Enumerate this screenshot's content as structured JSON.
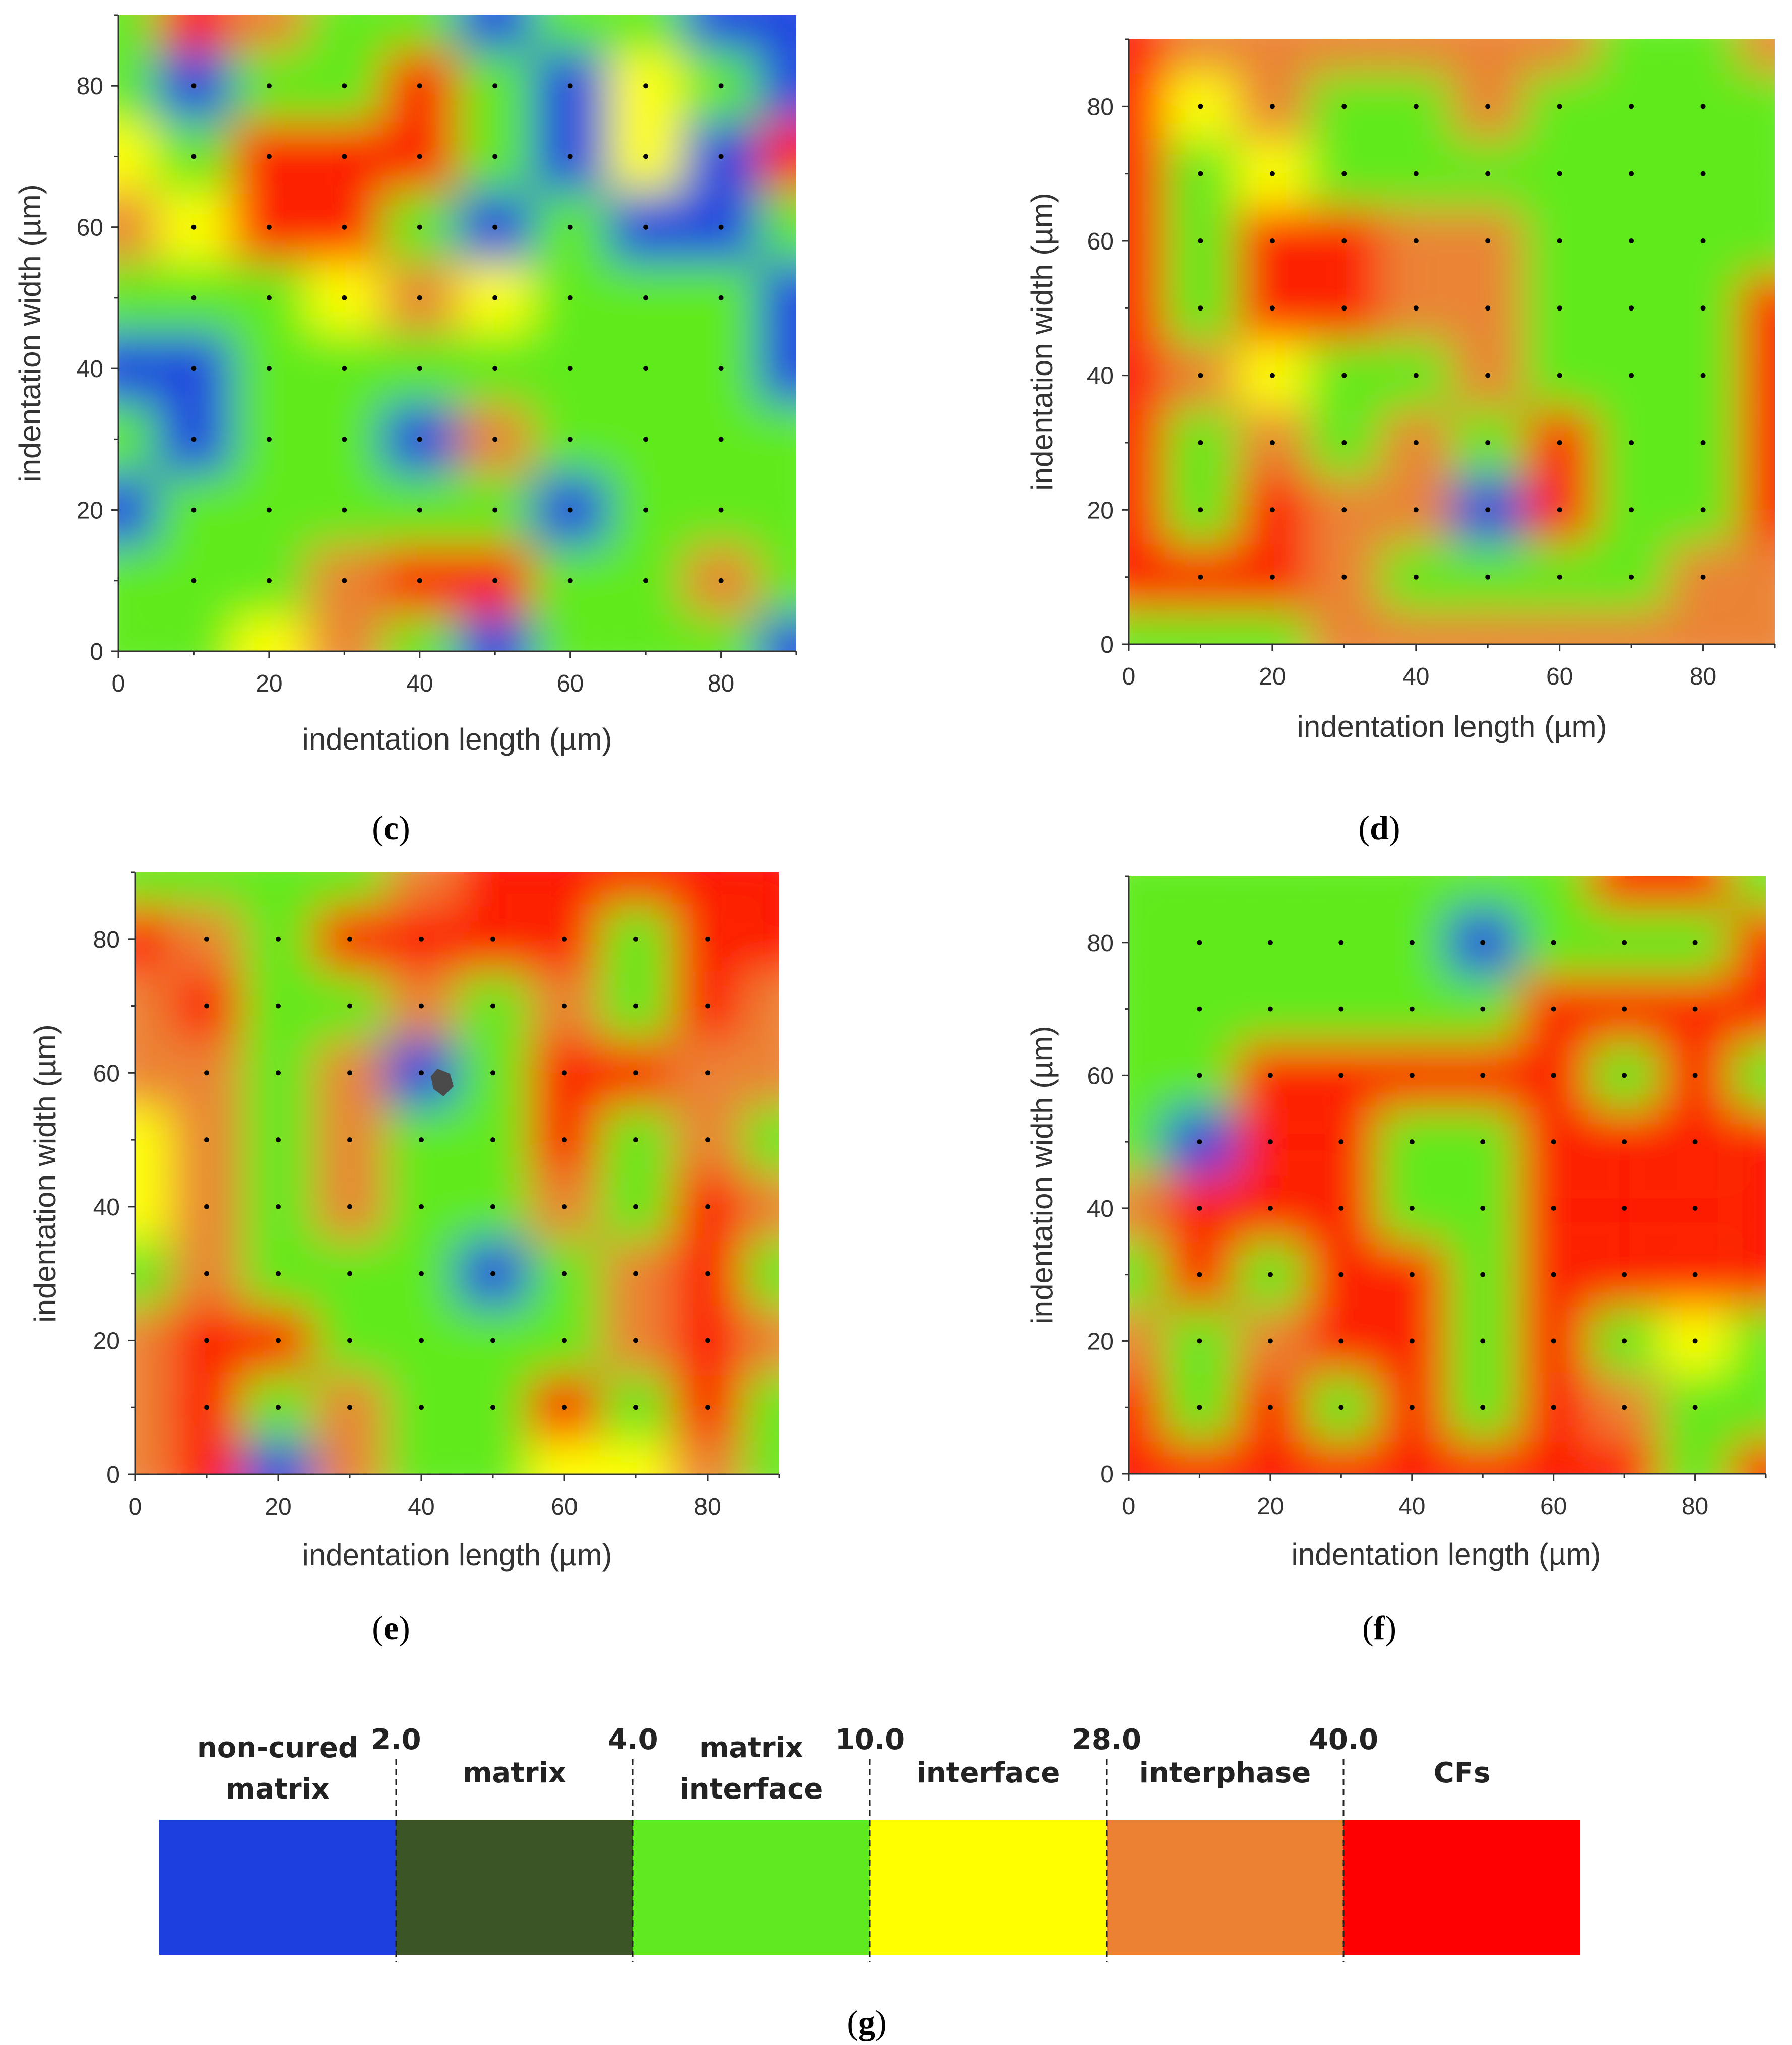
{
  "colors": {
    "non_cured_matrix": "#1e3fe0",
    "matrix": "#3c5526",
    "matrix_interface": "#5fea1f",
    "interface": "#ffff00",
    "interphase": "#ec8134",
    "cfs": "#ff0000"
  },
  "chart_data": [
    {
      "type": "heatmap",
      "panel_label": "(c)",
      "panel_letter": "c",
      "xlabel": "indentation length (µm)",
      "ylabel": "indentation width (µm)",
      "xlim": [
        0,
        90
      ],
      "ylim": [
        0,
        90
      ],
      "x_ticks": [
        0,
        20,
        40,
        60,
        80
      ],
      "y_ticks": [
        0,
        20,
        40,
        60,
        80
      ],
      "indent_grid": [
        10,
        20,
        30,
        40,
        50,
        60,
        70,
        80
      ],
      "x": [
        0,
        10,
        20,
        30,
        40,
        50,
        60,
        70,
        80,
        90
      ],
      "y": [
        0,
        10,
        20,
        30,
        40,
        50,
        60,
        70,
        80,
        90
      ],
      "z": [
        [
          8,
          4,
          10,
          28,
          6,
          1,
          4,
          5,
          2,
          1
        ],
        [
          6,
          5,
          7,
          28,
          40,
          42,
          8,
          5,
          30,
          6
        ],
        [
          1,
          3,
          5,
          2,
          3,
          4,
          1,
          2,
          6,
          2
        ],
        [
          2,
          1,
          4,
          3,
          1,
          28,
          5,
          2,
          6,
          2
        ],
        [
          1,
          0.5,
          4,
          6,
          2,
          5,
          6,
          8,
          4,
          1
        ],
        [
          4,
          6,
          8,
          10,
          28,
          10,
          4,
          3,
          2,
          1
        ],
        [
          35,
          12,
          40,
          42,
          3,
          1,
          2,
          1,
          1,
          4
        ],
        [
          10,
          4,
          40,
          45,
          42,
          4,
          1,
          20,
          1,
          45
        ],
        [
          4,
          1,
          2,
          6,
          40,
          3,
          1,
          25,
          2,
          1
        ],
        [
          4,
          45,
          35,
          4,
          2,
          1,
          3,
          4,
          1,
          0.5
        ]
      ]
    },
    {
      "type": "heatmap",
      "panel_label": "(d)",
      "panel_letter": "d",
      "xlabel": "indentation length (µm)",
      "ylabel": "indentation width (µm)",
      "xlim": [
        0,
        90
      ],
      "ylim": [
        0,
        90
      ],
      "x_ticks": [
        0,
        20,
        40,
        60,
        80
      ],
      "y_ticks": [
        0,
        20,
        40,
        60,
        80
      ],
      "indent_grid": [
        10,
        20,
        30,
        40,
        50,
        60,
        70,
        80
      ],
      "x": [
        0,
        10,
        20,
        30,
        40,
        50,
        60,
        70,
        80,
        90
      ],
      "y": [
        0,
        10,
        20,
        30,
        40,
        50,
        60,
        70,
        80,
        90
      ],
      "z": [
        [
          2,
          2,
          4,
          30,
          28,
          30,
          28,
          30,
          28,
          30
        ],
        [
          45,
          45,
          40,
          30,
          6,
          4,
          6,
          5,
          30,
          28
        ],
        [
          45,
          6,
          40,
          35,
          28,
          1,
          45,
          8,
          6,
          40
        ],
        [
          45,
          6,
          35,
          6,
          30,
          6,
          45,
          8,
          3,
          40
        ],
        [
          45,
          28,
          12,
          8,
          6,
          28,
          6,
          4,
          6,
          40
        ],
        [
          45,
          8,
          45,
          40,
          28,
          30,
          6,
          8,
          2,
          40
        ],
        [
          45,
          6,
          45,
          45,
          28,
          30,
          8,
          5,
          6,
          6
        ],
        [
          45,
          8,
          10,
          6,
          6,
          6,
          8,
          6,
          6,
          6
        ],
        [
          45,
          10,
          28,
          8,
          6,
          30,
          6,
          4,
          6,
          6
        ],
        [
          45,
          28,
          28,
          28,
          28,
          30,
          28,
          4,
          6,
          28
        ]
      ]
    },
    {
      "type": "heatmap",
      "panel_label": "(e)",
      "panel_letter": "e",
      "xlabel": "indentation length (µm)",
      "ylabel": "indentation width (µm)",
      "xlim": [
        0,
        90
      ],
      "ylim": [
        0,
        90
      ],
      "x_ticks": [
        0,
        20,
        40,
        60,
        80
      ],
      "y_ticks": [
        0,
        20,
        40,
        60,
        80
      ],
      "indent_grid": [
        10,
        20,
        30,
        40,
        50,
        60,
        70,
        80
      ],
      "x": [
        0,
        10,
        20,
        30,
        40,
        50,
        60,
        70,
        80,
        90
      ],
      "y": [
        0,
        10,
        20,
        30,
        40,
        50,
        60,
        70,
        80,
        90
      ],
      "z": [
        [
          28,
          40,
          1,
          28,
          6,
          8,
          20,
          10,
          30,
          6
        ],
        [
          28,
          42,
          6,
          30,
          6,
          8,
          40,
          6,
          45,
          8
        ],
        [
          28,
          45,
          40,
          6,
          6,
          6,
          6,
          30,
          45,
          28
        ],
        [
          6,
          28,
          6,
          8,
          8,
          1,
          8,
          30,
          40,
          2
        ],
        [
          10,
          28,
          6,
          28,
          6,
          6,
          30,
          6,
          40,
          28
        ],
        [
          10,
          30,
          6,
          28,
          6,
          6,
          40,
          2,
          30,
          2
        ],
        [
          28,
          35,
          6,
          30,
          1,
          6,
          40,
          42,
          30,
          28
        ],
        [
          30,
          40,
          6,
          8,
          30,
          8,
          28,
          6,
          40,
          30
        ],
        [
          40,
          35,
          8,
          45,
          40,
          45,
          45,
          6,
          40,
          45
        ],
        [
          6,
          6,
          6,
          6,
          30,
          40,
          45,
          40,
          40,
          45
        ]
      ]
    },
    {
      "type": "heatmap",
      "panel_label": "(f)",
      "panel_letter": "f",
      "xlabel": "indentation length (µm)",
      "ylabel": "indentation width (µm)",
      "xlim": [
        0,
        90
      ],
      "ylim": [
        0,
        90
      ],
      "x_ticks": [
        0,
        20,
        40,
        60,
        80
      ],
      "y_ticks": [
        0,
        20,
        40,
        60,
        80
      ],
      "indent_grid": [
        10,
        20,
        30,
        40,
        50,
        60,
        70,
        80
      ],
      "x": [
        0,
        10,
        20,
        30,
        40,
        50,
        60,
        70,
        80,
        90
      ],
      "y": [
        0,
        10,
        20,
        30,
        40,
        50,
        60,
        70,
        80,
        90
      ],
      "z": [
        [
          45,
          45,
          45,
          45,
          45,
          40,
          45,
          40,
          6,
          45
        ],
        [
          45,
          8,
          45,
          6,
          45,
          8,
          45,
          30,
          2,
          6
        ],
        [
          30,
          6,
          28,
          45,
          45,
          8,
          45,
          8,
          10,
          6
        ],
        [
          8,
          40,
          6,
          45,
          45,
          6,
          45,
          45,
          45,
          45
        ],
        [
          28,
          45,
          45,
          45,
          6,
          8,
          45,
          45,
          45,
          45
        ],
        [
          6,
          1,
          45,
          45,
          8,
          2,
          45,
          45,
          45,
          45
        ],
        [
          6,
          6,
          40,
          45,
          45,
          40,
          45,
          6,
          45,
          6
        ],
        [
          6,
          6,
          6,
          8,
          6,
          8,
          40,
          45,
          45,
          45
        ],
        [
          6,
          6,
          6,
          6,
          6,
          1,
          6,
          6,
          8,
          40
        ],
        [
          6,
          6,
          6,
          6,
          6,
          6,
          6,
          40,
          45,
          6
        ]
      ]
    },
    {
      "type": "legend-bar",
      "panel_label": "(g)",
      "panel_letter": "g",
      "thresholds": [
        "2.0",
        "4.0",
        "10.0",
        "28.0",
        "40.0"
      ],
      "threshold_values": [
        2,
        4,
        10,
        28,
        40
      ],
      "segments": [
        {
          "lines": [
            "non-cured",
            "matrix"
          ],
          "color_key": "non_cured_matrix"
        },
        {
          "lines": [
            "matrix"
          ],
          "color_key": "matrix"
        },
        {
          "lines": [
            "matrix",
            "interface"
          ],
          "color_key": "matrix_interface"
        },
        {
          "lines": [
            "interface"
          ],
          "color_key": "interface"
        },
        {
          "lines": [
            "interphase"
          ],
          "color_key": "interphase"
        },
        {
          "lines": [
            "CFs"
          ],
          "color_key": "cfs"
        }
      ]
    }
  ]
}
